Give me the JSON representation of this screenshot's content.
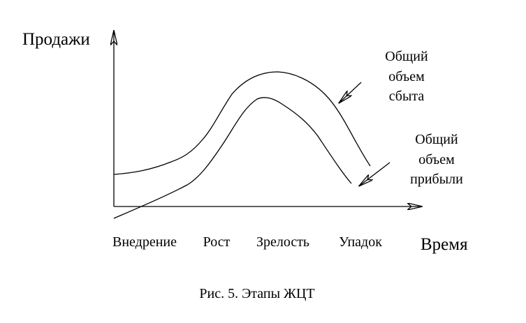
{
  "axes": {
    "y_label": "Продажи",
    "x_label": "Время"
  },
  "stages": [
    "Внедрение",
    "Рост",
    "Зрелость",
    "Упадок"
  ],
  "labels": [
    {
      "lines": [
        "Общий",
        "объем",
        "сбыта"
      ]
    },
    {
      "lines": [
        "Общий",
        "объем",
        "прибыли"
      ]
    }
  ],
  "caption": "Рис. 5. Этапы ЖЦТ"
}
